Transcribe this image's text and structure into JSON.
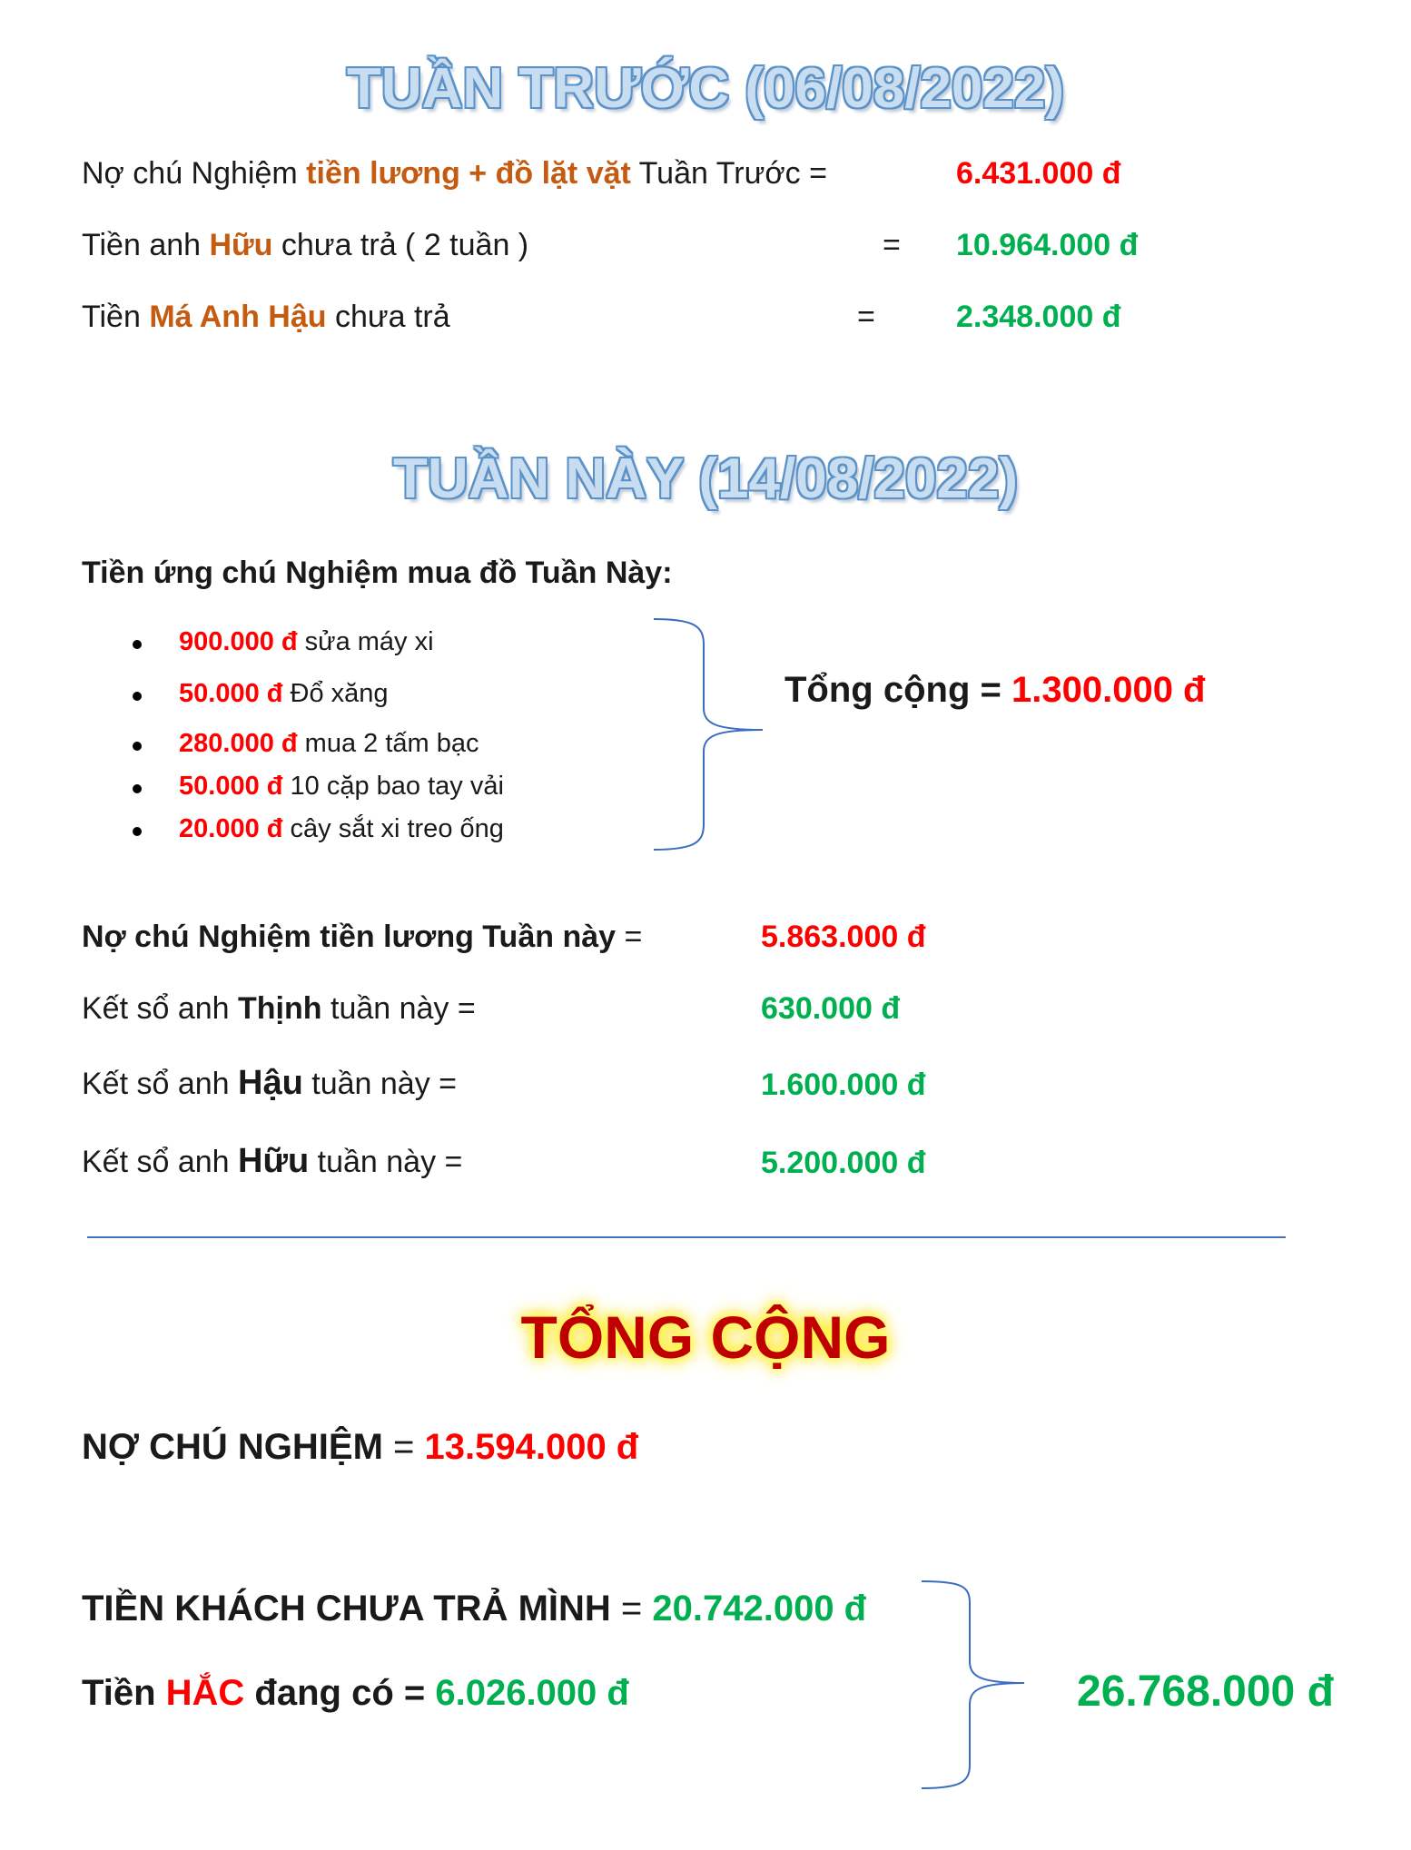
{
  "last_week": {
    "title": "TUẦN TRƯỚC (06/08/2022)",
    "row1": {
      "pre": "Nợ chú Nghiệm ",
      "highlight": "tiền lương + đồ lặt vặt",
      "post": " Tuần Trước =",
      "value": "6.431.000 đ"
    },
    "row2": {
      "pre": "Tiền anh ",
      "highlight": "Hữu",
      "post": " chưa trả  ( 2 tuần )",
      "eq": "=",
      "value": "10.964.000 đ"
    },
    "row3": {
      "pre": "Tiền ",
      "highlight": "Má Anh Hậu",
      "post": " chưa trả",
      "eq": "=",
      "value": "2.348.000 đ"
    }
  },
  "this_week": {
    "title": "TUẦN NÀY (14/08/2022)",
    "advance_heading": "Tiền ứng chú Nghiệm mua đồ Tuần Này:",
    "items": [
      {
        "amount": "900.000 đ",
        "desc": " sửa máy xi"
      },
      {
        "amount": "50.000 đ",
        "desc": " Đổ xăng"
      },
      {
        "amount": "280.000 đ",
        "desc": " mua 2 tấm bạc"
      },
      {
        "amount": "50.000 đ",
        "desc": "  10 cặp bao tay vải"
      },
      {
        "amount": "20.000 đ",
        "desc": " cây sắt xi treo ống"
      }
    ],
    "subtotal_label": "Tổng cộng = ",
    "subtotal_value": "1.300.000 đ",
    "salary": {
      "label": "Nợ chú Nghiệm tiền lương Tuần này",
      "eq": " =",
      "value": "5.863.000 đ"
    },
    "thinh": {
      "pre": "Kết sổ anh ",
      "name": "Thịnh",
      "post": " tuần này =",
      "value": "630.000 đ"
    },
    "hau": {
      "pre": "Kết sổ anh ",
      "name": "Hậu",
      "post": " tuần này =",
      "value": "1.600.000 đ"
    },
    "huu": {
      "pre": "Kết sổ anh ",
      "name": "Hữu",
      "post": " tuần này =",
      "value": "5.200.000 đ"
    }
  },
  "total": {
    "title": "TỔNG CỘNG",
    "debt": {
      "label": "NỢ CHÚ NGHIỆM",
      "eq": " = ",
      "value": "13.594.000 đ"
    },
    "unpaid": {
      "label": "TIỀN KHÁCH CHƯA TRẢ MÌNH",
      "eq": " = ",
      "value": "20.742.000 đ"
    },
    "cash": {
      "pre": "Tiền ",
      "name": "HẮC",
      "post": " đang có = ",
      "value": "6.026.000 đ"
    },
    "grand_total": "26.768.000 đ"
  },
  "colors": {
    "red": "#ff0000",
    "green": "#00b050",
    "orange": "#c55a11",
    "title_blue": "#5b92c8",
    "dark_red": "#c00000"
  }
}
